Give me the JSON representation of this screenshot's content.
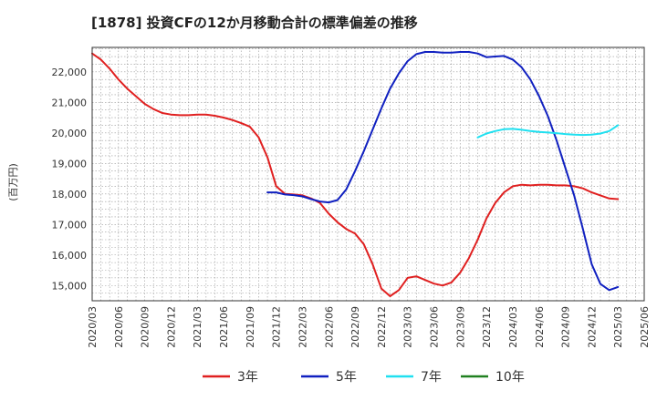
{
  "chart_data": {
    "type": "line",
    "title": "[1878]  投資CFの12か月移動合計の標準偏差の推移",
    "ylabel": "(百万円)",
    "xlabel": "",
    "ylim": [
      14500,
      22800
    ],
    "yticks": [
      15000,
      16000,
      17000,
      18000,
      19000,
      20000,
      21000,
      22000
    ],
    "ytick_labels": [
      "15,000",
      "16,000",
      "17,000",
      "18,000",
      "19,000",
      "20,000",
      "21,000",
      "22,000"
    ],
    "xticks": [
      "2020/03",
      "2020/06",
      "2020/09",
      "2020/12",
      "2021/03",
      "2021/06",
      "2021/09",
      "2021/12",
      "2022/03",
      "2022/06",
      "2022/09",
      "2022/12",
      "2023/03",
      "2023/06",
      "2023/09",
      "2023/12",
      "2024/03",
      "2024/06",
      "2024/09",
      "2024/12",
      "2025/03",
      "2025/06"
    ],
    "grid": true,
    "legend_position": "bottom",
    "series": [
      {
        "name": "3年",
        "color": "#e02020",
        "x": [
          "2020/03",
          "2020/04",
          "2020/05",
          "2020/06",
          "2020/07",
          "2020/08",
          "2020/09",
          "2020/10",
          "2020/11",
          "2020/12",
          "2021/01",
          "2021/02",
          "2021/03",
          "2021/04",
          "2021/05",
          "2021/06",
          "2021/07",
          "2021/08",
          "2021/09",
          "2021/10",
          "2021/11",
          "2021/12",
          "2022/01",
          "2022/02",
          "2022/03",
          "2022/04",
          "2022/05",
          "2022/06",
          "2022/07",
          "2022/08",
          "2022/09",
          "2022/10",
          "2022/11",
          "2022/12",
          "2023/01",
          "2023/02",
          "2023/03",
          "2023/04",
          "2023/05",
          "2023/06",
          "2023/07",
          "2023/08",
          "2023/09",
          "2023/10",
          "2023/11",
          "2023/12",
          "2024/01",
          "2024/02",
          "2024/03",
          "2024/04",
          "2024/05",
          "2024/06",
          "2024/07",
          "2024/08",
          "2024/09",
          "2024/10",
          "2024/11",
          "2024/12",
          "2025/01",
          "2025/02",
          "2025/03"
        ],
        "values": [
          22600,
          22400,
          22100,
          21750,
          21450,
          21200,
          20950,
          20780,
          20650,
          20600,
          20580,
          20580,
          20600,
          20600,
          20560,
          20500,
          20420,
          20320,
          20200,
          19850,
          19200,
          18250,
          18000,
          17980,
          17950,
          17850,
          17700,
          17350,
          17070,
          16850,
          16700,
          16350,
          15700,
          14900,
          14650,
          14850,
          15250,
          15300,
          15180,
          15060,
          15000,
          15100,
          15420,
          15900,
          16500,
          17200,
          17700,
          18050,
          18250,
          18300,
          18280,
          18300,
          18300,
          18280,
          18280,
          18250,
          18180,
          18050,
          17950,
          17850,
          17830
        ]
      },
      {
        "name": "5年",
        "color": "#1020c0",
        "x": [
          "2021/11",
          "2021/12",
          "2022/01",
          "2022/02",
          "2022/03",
          "2022/04",
          "2022/05",
          "2022/06",
          "2022/07",
          "2022/08",
          "2022/09",
          "2022/10",
          "2022/11",
          "2022/12",
          "2023/01",
          "2023/02",
          "2023/03",
          "2023/04",
          "2023/05",
          "2023/06",
          "2023/07",
          "2023/08",
          "2023/09",
          "2023/10",
          "2023/11",
          "2023/12",
          "2024/01",
          "2024/02",
          "2024/03",
          "2024/04",
          "2024/05",
          "2024/06",
          "2024/07",
          "2024/08",
          "2024/09",
          "2024/10",
          "2024/11",
          "2024/12",
          "2025/01",
          "2025/02",
          "2025/03"
        ],
        "values": [
          18050,
          18050,
          17980,
          17960,
          17920,
          17830,
          17750,
          17720,
          17800,
          18150,
          18750,
          19400,
          20100,
          20800,
          21450,
          21950,
          22350,
          22580,
          22650,
          22650,
          22630,
          22630,
          22650,
          22650,
          22600,
          22480,
          22500,
          22520,
          22400,
          22150,
          21750,
          21200,
          20550,
          19750,
          18850,
          17950,
          16850,
          15700,
          15050,
          14850,
          14950
        ]
      },
      {
        "name": "7年",
        "color": "#20e0f0",
        "x": [
          "2023/11",
          "2023/12",
          "2024/01",
          "2024/02",
          "2024/03",
          "2024/04",
          "2024/05",
          "2024/06",
          "2024/07",
          "2024/08",
          "2024/09",
          "2024/10",
          "2024/11",
          "2024/12",
          "2025/01",
          "2025/02",
          "2025/03"
        ],
        "values": [
          19850,
          19980,
          20060,
          20120,
          20130,
          20100,
          20060,
          20030,
          20010,
          19990,
          19960,
          19940,
          19930,
          19940,
          19980,
          20060,
          20250
        ]
      },
      {
        "name": "10年",
        "color": "#208020",
        "x": [],
        "values": []
      }
    ]
  }
}
